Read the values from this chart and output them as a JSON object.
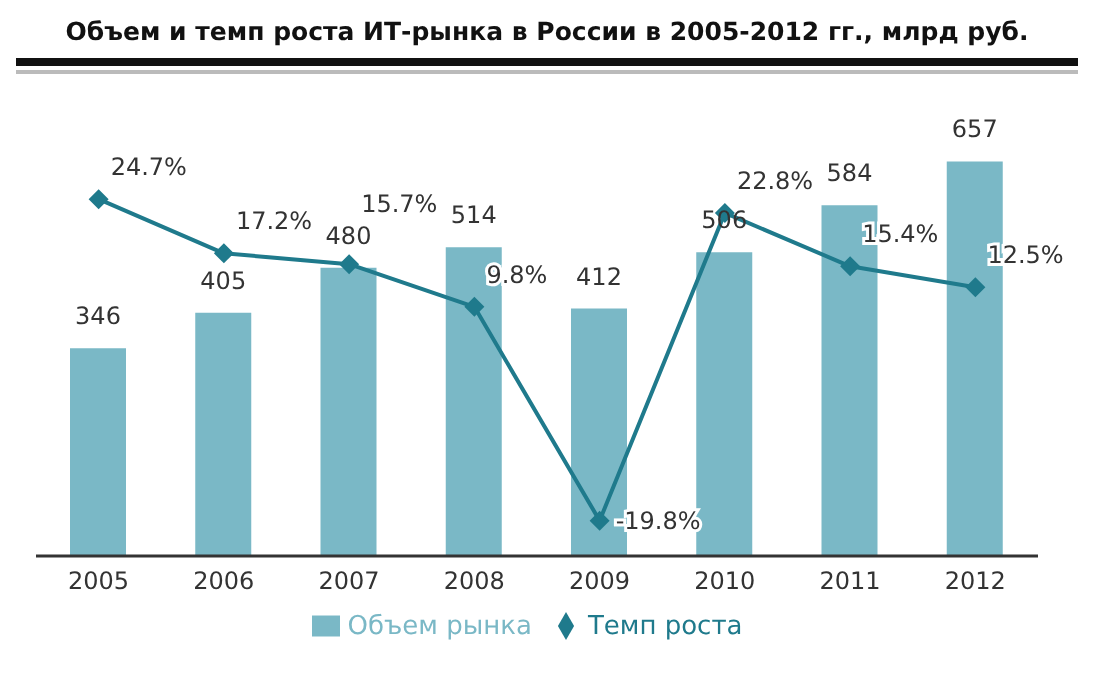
{
  "chart_data": {
    "type": "bar",
    "title": "Объем и темп роста ИТ-рынка в России в 2005-2012 гг., млрд руб.",
    "categories": [
      "2005",
      "2006",
      "2007",
      "2008",
      "2009",
      "2010",
      "2011",
      "2012"
    ],
    "series": [
      {
        "name": "Объем рынка",
        "color": "#7ab8c6",
        "values": [
          346,
          405,
          480,
          514,
          412,
          506,
          584,
          657
        ]
      },
      {
        "name": "Темп роста",
        "type": "line",
        "axis": "y2",
        "color": "#1f7a8c",
        "values": [
          24.7,
          17.2,
          15.7,
          9.8,
          -19.8,
          22.8,
          15.4,
          12.5
        ],
        "value_labels": [
          "24.7%",
          "17.2%",
          "15.7%",
          "9.8%",
          "-19.8%",
          "22.8%",
          "15.4%",
          "12.5%"
        ]
      }
    ],
    "data_labels": true,
    "tick_labels": "x",
    "legend": "bottom",
    "marker": "diamond",
    "line_style": "solid"
  }
}
